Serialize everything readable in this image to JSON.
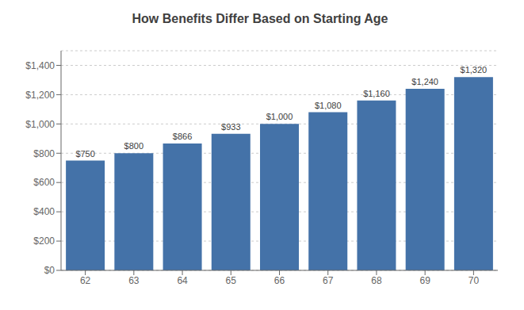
{
  "chart_data": {
    "type": "bar",
    "title": "How Benefits Differ Based on Starting Age",
    "categories": [
      "62",
      "63",
      "64",
      "65",
      "66",
      "67",
      "68",
      "69",
      "70"
    ],
    "values": [
      750,
      800,
      866,
      933,
      1000,
      1080,
      1160,
      1240,
      1320
    ],
    "value_labels": [
      "$750",
      "$800",
      "$866",
      "$933",
      "$1,000",
      "$1,080",
      "$1,160",
      "$1,240",
      "$1,320"
    ],
    "color": "#4472a8",
    "ylim": [
      0,
      1500
    ],
    "yticks": [
      {
        "value": 0,
        "label": "$0"
      },
      {
        "value": 200,
        "label": "$200"
      },
      {
        "value": 400,
        "label": "$400"
      },
      {
        "value": 600,
        "label": "$600"
      },
      {
        "value": 800,
        "label": "$800"
      },
      {
        "value": 1000,
        "label": "$1,000"
      },
      {
        "value": 1200,
        "label": "$1,200"
      },
      {
        "value": 1400,
        "label": "$1,400"
      }
    ],
    "grid": true,
    "data_labels": true
  }
}
